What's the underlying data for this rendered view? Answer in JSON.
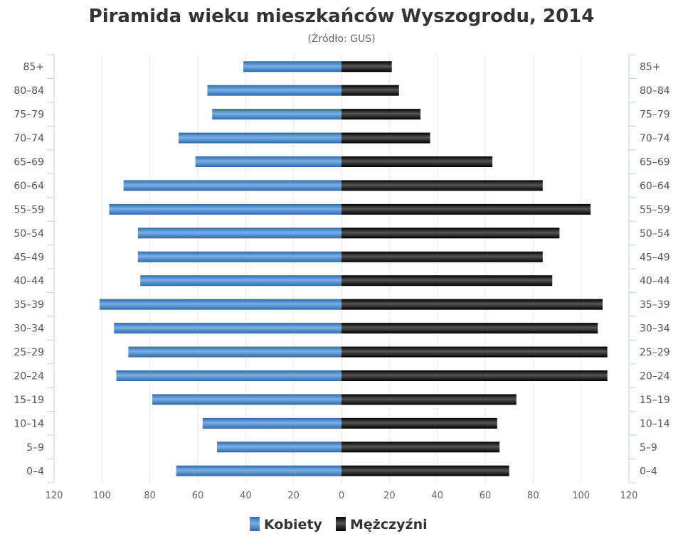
{
  "chart_data": {
    "type": "bar",
    "orientation": "horizontal",
    "title": "Piramida wieku mieszkańców Wyszogrodu, 2014",
    "subtitle": "(Źródło: GUS)",
    "categories": [
      "85+",
      "80-84",
      "75-79",
      "70-74",
      "65-69",
      "60-64",
      "55-59",
      "50-54",
      "45-49",
      "40-44",
      "35-39",
      "30-34",
      "25-29",
      "20-24",
      "15-19",
      "10-14",
      "5-9",
      "0-4"
    ],
    "series": [
      {
        "name": "Kobiety",
        "side": "left",
        "color": "#4a86c5",
        "values": [
          41,
          56,
          54,
          68,
          61,
          91,
          97,
          85,
          85,
          84,
          101,
          95,
          89,
          94,
          79,
          58,
          52,
          69
        ]
      },
      {
        "name": "Mężczyźni",
        "side": "right",
        "color": "#1a1a1a",
        "values": [
          21,
          24,
          33,
          37,
          63,
          84,
          104,
          91,
          84,
          88,
          109,
          107,
          111,
          111,
          73,
          65,
          66,
          70
        ]
      }
    ],
    "xlim": [
      -120,
      120
    ],
    "xticks": [
      -120,
      -100,
      -80,
      -60,
      -40,
      -20,
      0,
      20,
      40,
      60,
      80,
      100,
      120
    ],
    "xtick_labels": [
      "120",
      "100",
      "80",
      "60",
      "40",
      "20",
      "0",
      "20",
      "40",
      "60",
      "80",
      "100",
      "120"
    ],
    "grid": true,
    "legend_position": "bottom-center",
    "category_axis": "both-sides"
  }
}
